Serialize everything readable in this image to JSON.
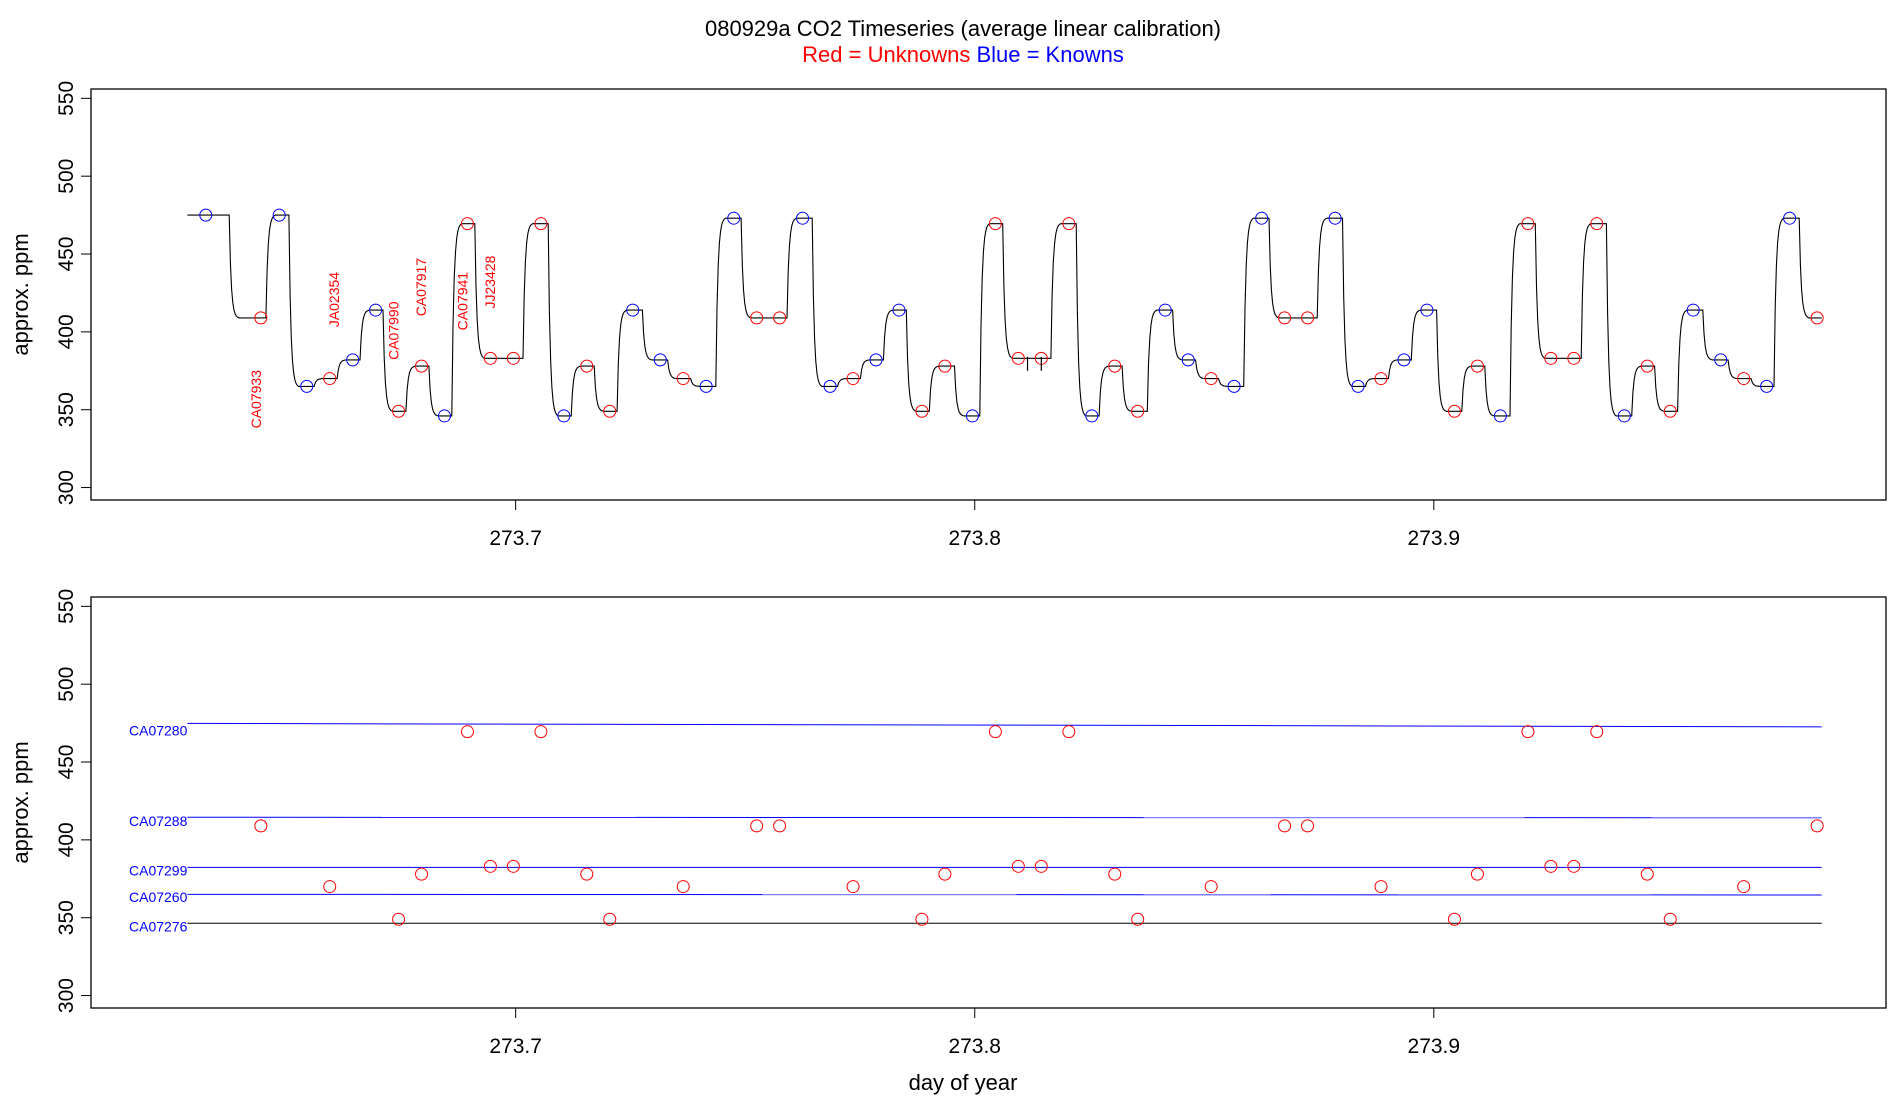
{
  "chart_data": {
    "title_main": "080929a   CO2 Timeseries (average linear calibration)",
    "subtitle_red": "Red = Unknowns",
    "subtitle_blue": "Blue = Knowns",
    "colors": {
      "unknown": "#ff0000",
      "known": "#0000ff",
      "trace": "#000000",
      "axis": "#000000"
    },
    "panels": [
      {
        "type": "line",
        "ylabel": "approx. ppm",
        "xlabel": "",
        "xlim": [
          273.6075,
          273.9985
        ],
        "ylim": [
          292,
          556
        ],
        "xticks": [
          273.7,
          273.8,
          273.9
        ],
        "xticklabels": [
          "273.7",
          "273.8",
          "273.9"
        ],
        "yticks": [
          300,
          350,
          400,
          450,
          500,
          550
        ],
        "yticklabels": [
          "300",
          "350",
          "400",
          "450",
          "500",
          "550"
        ],
        "trace_levels": [
          {
            "x": 273.6325,
            "y": 475.0,
            "kind": "known"
          },
          {
            "x": 273.6445,
            "y": 409.0,
            "kind": "unknown"
          },
          {
            "x": 273.6485,
            "y": 475.0,
            "kind": "known"
          },
          {
            "x": 273.6545,
            "y": 365.0,
            "kind": "known"
          },
          {
            "x": 273.6595,
            "y": 370.0,
            "kind": "unknown"
          },
          {
            "x": 273.6645,
            "y": 382.0,
            "kind": "known"
          },
          {
            "x": 273.6695,
            "y": 414.0,
            "kind": "known"
          },
          {
            "x": 273.6745,
            "y": 349.0,
            "kind": "unknown"
          },
          {
            "x": 273.6795,
            "y": 378.0,
            "kind": "unknown"
          },
          {
            "x": 273.6845,
            "y": 346.0,
            "kind": "known"
          },
          {
            "x": 273.6895,
            "y": 469.5,
            "kind": "unknown"
          },
          {
            "x": 273.6945,
            "y": 383.0,
            "kind": "unknown"
          },
          {
            "x": 273.6995,
            "y": 383.0,
            "kind": "unknown"
          },
          {
            "x": 273.7055,
            "y": 469.5,
            "kind": "unknown"
          },
          {
            "x": 273.7105,
            "y": 346.0,
            "kind": "known"
          },
          {
            "x": 273.7155,
            "y": 378.0,
            "kind": "unknown"
          },
          {
            "x": 273.7205,
            "y": 349.0,
            "kind": "unknown"
          },
          {
            "x": 273.7255,
            "y": 414.0,
            "kind": "known"
          },
          {
            "x": 273.7315,
            "y": 382.0,
            "kind": "known"
          },
          {
            "x": 273.7365,
            "y": 370.0,
            "kind": "unknown"
          },
          {
            "x": 273.7415,
            "y": 365.0,
            "kind": "known"
          },
          {
            "x": 273.7475,
            "y": 473.0,
            "kind": "known"
          },
          {
            "x": 273.7525,
            "y": 409.0,
            "kind": "unknown"
          },
          {
            "x": 273.7575,
            "y": 409.0,
            "kind": "unknown"
          },
          {
            "x": 273.7625,
            "y": 473.0,
            "kind": "known"
          },
          {
            "x": 273.7685,
            "y": 365.0,
            "kind": "known"
          },
          {
            "x": 273.7735,
            "y": 370.0,
            "kind": "unknown"
          },
          {
            "x": 273.7785,
            "y": 382.0,
            "kind": "known"
          },
          {
            "x": 273.7835,
            "y": 414.0,
            "kind": "known"
          },
          {
            "x": 273.7885,
            "y": 349.0,
            "kind": "unknown"
          },
          {
            "x": 273.7935,
            "y": 378.0,
            "kind": "unknown"
          },
          {
            "x": 273.7995,
            "y": 346.0,
            "kind": "known"
          },
          {
            "x": 273.8045,
            "y": 469.5,
            "kind": "unknown"
          },
          {
            "x": 273.8095,
            "y": 383.0,
            "kind": "unknown"
          },
          {
            "x": 273.8145,
            "y": 383.0,
            "kind": "unknown"
          },
          {
            "x": 273.8205,
            "y": 469.5,
            "kind": "unknown"
          },
          {
            "x": 273.8255,
            "y": 346.0,
            "kind": "known"
          },
          {
            "x": 273.8305,
            "y": 378.0,
            "kind": "unknown"
          },
          {
            "x": 273.8355,
            "y": 349.0,
            "kind": "unknown"
          },
          {
            "x": 273.8415,
            "y": 414.0,
            "kind": "known"
          },
          {
            "x": 273.8465,
            "y": 382.0,
            "kind": "known"
          },
          {
            "x": 273.8515,
            "y": 370.0,
            "kind": "unknown"
          },
          {
            "x": 273.8565,
            "y": 365.0,
            "kind": "known"
          },
          {
            "x": 273.8625,
            "y": 473.0,
            "kind": "known"
          },
          {
            "x": 273.8675,
            "y": 409.0,
            "kind": "unknown"
          },
          {
            "x": 273.8725,
            "y": 409.0,
            "kind": "unknown"
          },
          {
            "x": 273.8785,
            "y": 473.0,
            "kind": "known"
          },
          {
            "x": 273.8835,
            "y": 365.0,
            "kind": "known"
          },
          {
            "x": 273.8885,
            "y": 370.0,
            "kind": "unknown"
          },
          {
            "x": 273.8935,
            "y": 382.0,
            "kind": "known"
          },
          {
            "x": 273.8985,
            "y": 414.0,
            "kind": "known"
          },
          {
            "x": 273.9045,
            "y": 349.0,
            "kind": "unknown"
          },
          {
            "x": 273.9095,
            "y": 378.0,
            "kind": "unknown"
          },
          {
            "x": 273.9145,
            "y": 346.0,
            "kind": "known"
          },
          {
            "x": 273.9205,
            "y": 469.5,
            "kind": "unknown"
          },
          {
            "x": 273.9255,
            "y": 383.0,
            "kind": "unknown"
          },
          {
            "x": 273.9305,
            "y": 383.0,
            "kind": "unknown"
          },
          {
            "x": 273.9355,
            "y": 469.5,
            "kind": "unknown"
          },
          {
            "x": 273.9415,
            "y": 346.0,
            "kind": "known"
          },
          {
            "x": 273.9465,
            "y": 378.0,
            "kind": "unknown"
          },
          {
            "x": 273.9515,
            "y": 349.0,
            "kind": "unknown"
          },
          {
            "x": 273.9565,
            "y": 414.0,
            "kind": "known"
          },
          {
            "x": 273.9625,
            "y": 382.0,
            "kind": "known"
          },
          {
            "x": 273.9675,
            "y": 370.0,
            "kind": "unknown"
          },
          {
            "x": 273.9725,
            "y": 365.0,
            "kind": "known"
          },
          {
            "x": 273.9775,
            "y": 473.0,
            "kind": "known"
          },
          {
            "x": 273.9835,
            "y": 409.0,
            "kind": "unknown"
          }
        ],
        "trace_start_x": 273.6285,
        "trace_end_x": 273.9845,
        "sample_labels": [
          {
            "text": "CA07933",
            "x": 273.6445,
            "y": 338
          },
          {
            "text": "JA02354",
            "x": 273.6615,
            "y": 403
          },
          {
            "text": "CA07990",
            "x": 273.6745,
            "y": 382
          },
          {
            "text": "CA07917",
            "x": 273.6805,
            "y": 410
          },
          {
            "text": "CA07941",
            "x": 273.6895,
            "y": 401
          },
          {
            "text": "JJ23428",
            "x": 273.6955,
            "y": 415
          }
        ],
        "markers": [
          {
            "x": 273.8115,
            "y0": 375,
            "y1": 384
          },
          {
            "x": 273.8145,
            "y0": 375,
            "y1": 384
          }
        ]
      },
      {
        "type": "scatter",
        "ylabel": "approx. ppm",
        "xlabel": "day of year",
        "xlim": [
          273.6075,
          273.9985
        ],
        "ylim": [
          292,
          556
        ],
        "xticks": [
          273.7,
          273.8,
          273.9
        ],
        "xticklabels": [
          "273.7",
          "273.8",
          "273.9"
        ],
        "yticks": [
          300,
          350,
          400,
          450,
          500,
          550
        ],
        "yticklabels": [
          "300",
          "350",
          "400",
          "450",
          "500",
          "550"
        ],
        "standards": [
          {
            "name": "CA07280",
            "y0": 474.8,
            "y1": 472.6,
            "color": "#0000ff",
            "label_y": 467
          },
          {
            "name": "CA07288",
            "y0": 414.5,
            "y1": 414.2,
            "color": "#0000ff",
            "label_y": 409
          },
          {
            "name": "CA07299",
            "y0": 382.3,
            "y1": 382.3,
            "color": "#0000ff",
            "label_y": 377
          },
          {
            "name": "CA07260",
            "y0": 365.0,
            "y1": 364.6,
            "color": "#0000ff",
            "label_y": 360
          },
          {
            "name": "CA07276",
            "y0": 346.4,
            "y1": 346.4,
            "color": "#000000",
            "label_y": 341
          }
        ],
        "x": [
          273.6445,
          273.6595,
          273.6745,
          273.6795,
          273.6895,
          273.6945,
          273.6995,
          273.7055,
          273.7155,
          273.7205,
          273.7365,
          273.7525,
          273.7575,
          273.7735,
          273.7885,
          273.7935,
          273.8045,
          273.8095,
          273.8145,
          273.8205,
          273.8305,
          273.8355,
          273.8515,
          273.8675,
          273.8725,
          273.8885,
          273.9045,
          273.9095,
          273.9205,
          273.9255,
          273.9305,
          273.9355,
          273.9465,
          273.9515,
          273.9675,
          273.9835
        ],
        "y": [
          409,
          370,
          349,
          378,
          469.5,
          383,
          383,
          469.5,
          378,
          349,
          370,
          409,
          409,
          370,
          349,
          378,
          469.5,
          383,
          383,
          469.5,
          378,
          349,
          370,
          409,
          409,
          370,
          349,
          378,
          469.5,
          383,
          383,
          469.5,
          378,
          349,
          370,
          409
        ]
      }
    ]
  }
}
